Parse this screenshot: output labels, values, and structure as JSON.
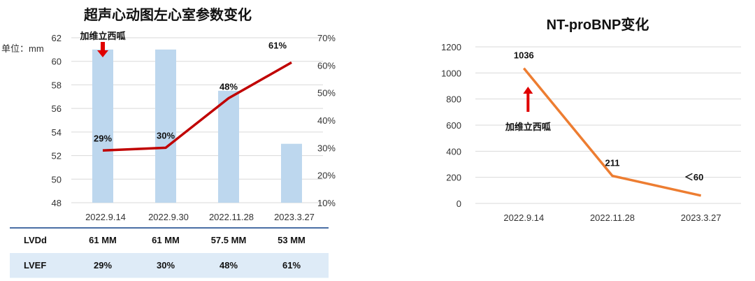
{
  "chart_data": [
    {
      "type": "bar",
      "title": "超声心动图左心室参数变化",
      "unit_label": "单位：mm",
      "categories": [
        "2022.9.14",
        "2022.9.30",
        "2022.11.28",
        "2023.3.27"
      ],
      "ylim": [
        48,
        62
      ],
      "yticks": [
        48,
        50,
        52,
        54,
        56,
        58,
        60,
        62
      ],
      "y2lim": [
        10,
        70
      ],
      "y2ticks": [
        "10%",
        "20%",
        "30%",
        "40%",
        "50%",
        "60%",
        "70%"
      ],
      "y2tick_values": [
        10,
        20,
        30,
        40,
        50,
        60,
        70
      ],
      "series": [
        {
          "name": "LVDd",
          "type": "bar",
          "axis": "left",
          "values": [
            61,
            61,
            57.5,
            53
          ],
          "color": "#bdd7ee"
        },
        {
          "name": "LVEF",
          "type": "line",
          "axis": "right",
          "values": [
            29,
            30,
            48,
            61
          ],
          "labels": [
            "29%",
            "30%",
            "48%",
            "61%"
          ],
          "color": "#c00000"
        }
      ],
      "legend": "right",
      "grid": true,
      "annotation": {
        "text": "加维立西呱",
        "category": "2022.9.14"
      },
      "table": {
        "rows": [
          {
            "header": "LVDd",
            "cells": [
              "61 MM",
              "61 MM",
              "57.5 MM",
              "53 MM"
            ]
          },
          {
            "header": "LVEF",
            "cells": [
              "29%",
              "30%",
              "48%",
              "61%"
            ]
          }
        ]
      }
    },
    {
      "type": "line",
      "title": "NT-proBNP变化",
      "categories": [
        "2022.9.14",
        "2022.11.28",
        "2023.3.27"
      ],
      "ylim": [
        0,
        1200
      ],
      "yticks": [
        0,
        200,
        400,
        600,
        800,
        1000,
        1200
      ],
      "series": [
        {
          "values": [
            1036,
            211,
            60
          ],
          "labels": [
            "1036",
            "211",
            "＜60"
          ],
          "color": "#ed7d31"
        }
      ],
      "grid": true,
      "annotation": {
        "text": "加维立西呱",
        "category": "2022.9.14"
      }
    }
  ],
  "colors": {
    "bar": "#bdd7ee",
    "line_left": "#c00000",
    "line_right": "#ed7d31",
    "arrow": "#e00000",
    "table_alt": "#deebf7",
    "table_line": "#4a6fa5"
  }
}
